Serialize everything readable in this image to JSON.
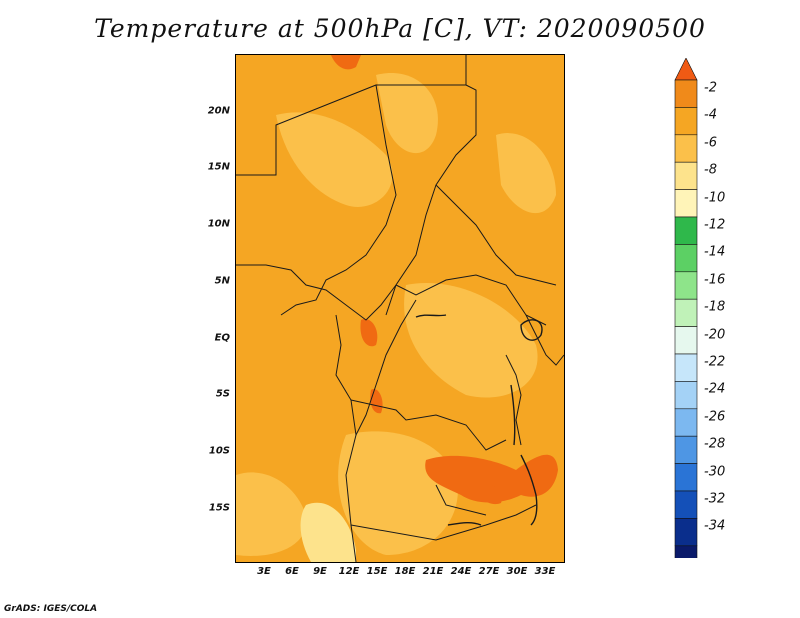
{
  "title": "Temperature at 500hPa [C], VT: 2020090500",
  "credit": "GrADS: IGES/COLA",
  "map": {
    "lat_ticks": [
      "20N",
      "15N",
      "10N",
      "5N",
      "EQ",
      "5S",
      "10S",
      "15S"
    ],
    "lon_ticks": [
      "3E",
      "6E",
      "9E",
      "12E",
      "15E",
      "18E",
      "21E",
      "24E",
      "27E",
      "30E",
      "33E"
    ],
    "field_colors": {
      "dominant": "#f5a623",
      "light": "#fbc04a",
      "pale": "#fde38c",
      "warm": "#f06a12"
    }
  },
  "colorbar": {
    "labels": [
      "-2",
      "-4",
      "-6",
      "-8",
      "-10",
      "-12",
      "-14",
      "-16",
      "-18",
      "-20",
      "-22",
      "-24",
      "-26",
      "-28",
      "-30",
      "-32",
      "-34"
    ],
    "colors": [
      "#f05a14",
      "#f08a1a",
      "#f5a623",
      "#fbc04a",
      "#fde38c",
      "#fff4b8",
      "#2fb84b",
      "#5cd064",
      "#8ee48a",
      "#c0f2b8",
      "#e6f8ee",
      "#c6e6fa",
      "#a4d2f6",
      "#7cb8f0",
      "#4e96e4",
      "#2a74d6",
      "#1450b8",
      "#0a2e8c",
      "#0a1a6a",
      "#dde0f8"
    ]
  }
}
